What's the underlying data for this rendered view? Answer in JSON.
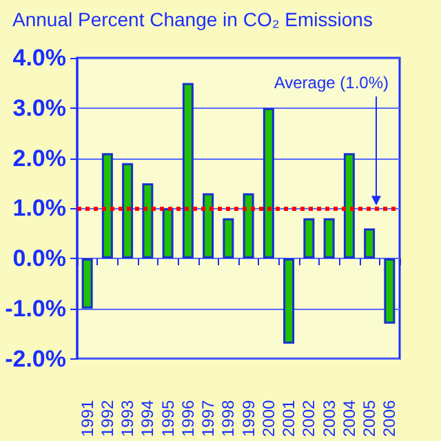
{
  "chart_data": {
    "type": "bar",
    "title": "Annual Percent Change in CO₂ Emissions",
    "categories": [
      "1991",
      "1992",
      "1993",
      "1994",
      "1995",
      "1996",
      "1997",
      "1998",
      "1999",
      "2000",
      "2001",
      "2002",
      "2003",
      "2004",
      "2005",
      "2006"
    ],
    "values": [
      -1.0,
      2.1,
      1.9,
      1.5,
      1.0,
      3.5,
      1.3,
      0.8,
      1.3,
      3.0,
      -1.7,
      0.8,
      0.8,
      2.1,
      0.6,
      -1.3
    ],
    "color": "#22c000",
    "ylim": [
      -2,
      4
    ],
    "yticks": [
      {
        "value": -2,
        "label": "-2.0%"
      },
      {
        "value": -1,
        "label": "-1.0%"
      },
      {
        "value": 0,
        "label": "0.0%"
      },
      {
        "value": 1,
        "label": "1.0%"
      },
      {
        "value": 2,
        "label": "2.0%"
      },
      {
        "value": 3,
        "label": "3.0%"
      },
      {
        "value": 4,
        "label": "4.0%"
      }
    ],
    "grid": "y",
    "ref_lines": [
      {
        "axis": "y",
        "value": 1.0,
        "label": "Average (1.0%)",
        "color": "#ff0000",
        "line_style": "dotted"
      }
    ]
  }
}
